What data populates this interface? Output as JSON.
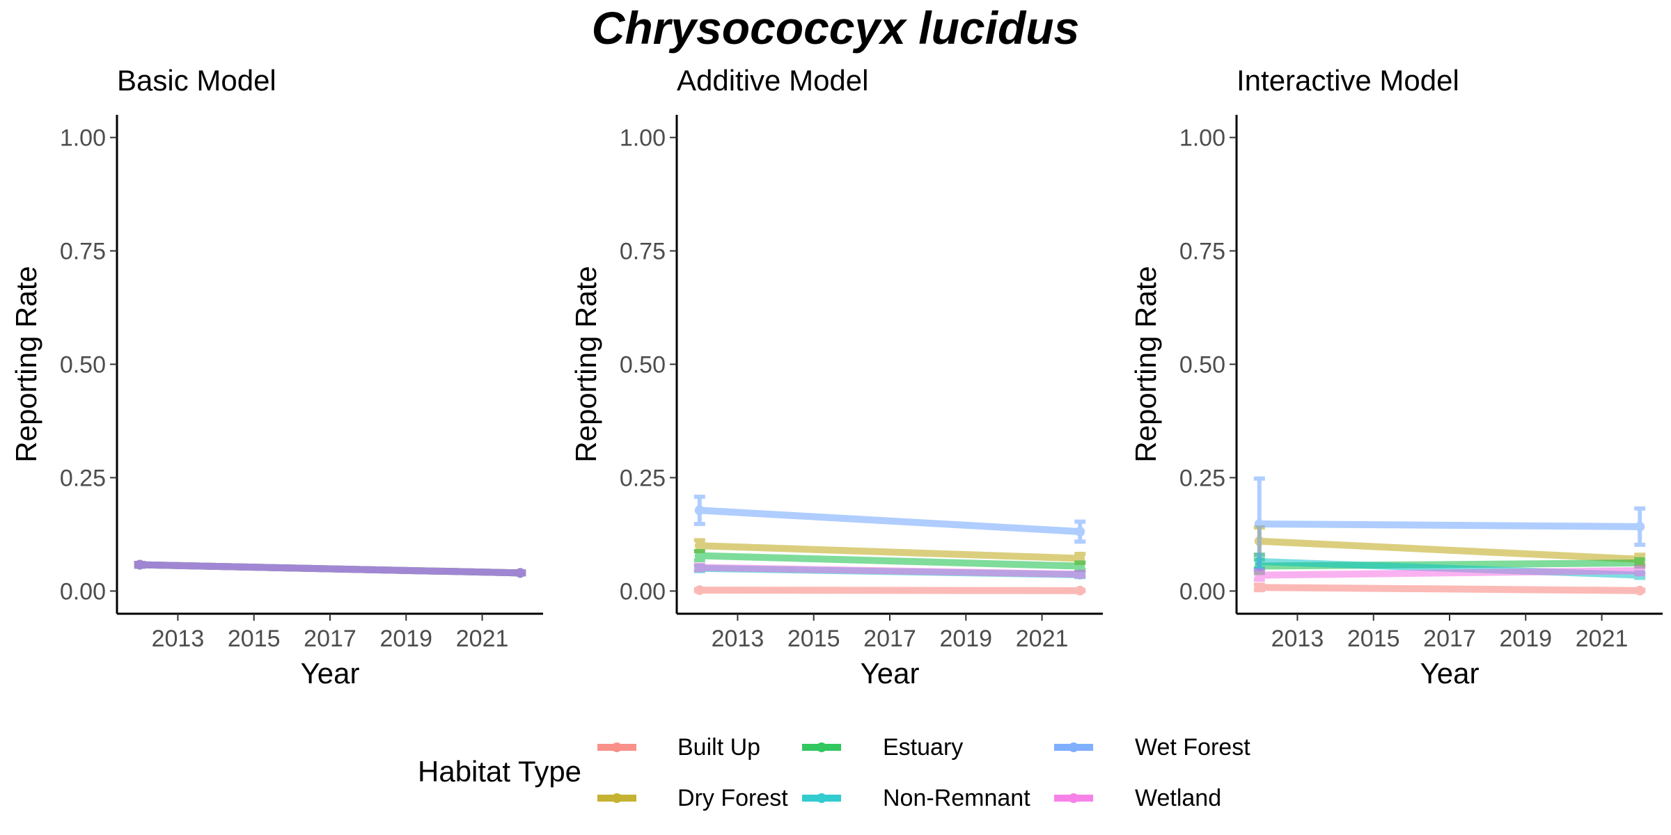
{
  "title": "Chrysococcyx lucidus",
  "legend": {
    "title": "Habitat Type",
    "entries": [
      {
        "label": "Built Up",
        "color": "#F8766D"
      },
      {
        "label": "Dry Forest",
        "color": "#B79F00"
      },
      {
        "label": "Estuary",
        "color": "#00BA38"
      },
      {
        "label": "Non-Remnant",
        "color": "#00BFC4"
      },
      {
        "label": "Wet Forest",
        "color": "#619CFF"
      },
      {
        "label": "Wetland",
        "color": "#F564E3"
      }
    ]
  },
  "chart_data": [
    {
      "type": "line",
      "title": "Basic Model",
      "xlabel": "Year",
      "ylabel": "Reporting Rate",
      "xlim": [
        2011.4,
        2022.6
      ],
      "ylim": [
        -0.05,
        1.05
      ],
      "xticks": [
        2013,
        2015,
        2017,
        2019,
        2021
      ],
      "yticks": [
        0.0,
        0.25,
        0.5,
        0.75,
        1.0
      ],
      "ytick_labels": [
        "0.00",
        "0.25",
        "0.50",
        "0.75",
        "1.00"
      ],
      "series": [
        {
          "habitat": "Built Up",
          "color": "#F8766D",
          "x": [
            2012,
            2022
          ],
          "y": [
            0.058,
            0.04
          ],
          "err": [
            0.004,
            0.003
          ]
        },
        {
          "habitat": "Dry Forest",
          "color": "#B79F00",
          "x": [
            2012,
            2022
          ],
          "y": [
            0.058,
            0.04
          ],
          "err": [
            0.004,
            0.003
          ]
        },
        {
          "habitat": "Estuary",
          "color": "#00BA38",
          "x": [
            2012,
            2022
          ],
          "y": [
            0.058,
            0.04
          ],
          "err": [
            0.004,
            0.003
          ]
        },
        {
          "habitat": "Non-Remnant",
          "color": "#00BFC4",
          "x": [
            2012,
            2022
          ],
          "y": [
            0.058,
            0.04
          ],
          "err": [
            0.004,
            0.003
          ]
        },
        {
          "habitat": "Wet Forest",
          "color": "#619CFF",
          "x": [
            2012,
            2022
          ],
          "y": [
            0.058,
            0.04
          ],
          "err": [
            0.004,
            0.003
          ]
        },
        {
          "habitat": "Wetland",
          "color": "#F564E3",
          "x": [
            2012,
            2022
          ],
          "y": [
            0.058,
            0.04
          ],
          "err": [
            0.004,
            0.003
          ]
        }
      ]
    },
    {
      "type": "line",
      "title": "Additive Model",
      "xlabel": "Year",
      "ylabel": "Reporting Rate",
      "xlim": [
        2011.4,
        2022.6
      ],
      "ylim": [
        -0.05,
        1.05
      ],
      "xticks": [
        2013,
        2015,
        2017,
        2019,
        2021
      ],
      "yticks": [
        0.0,
        0.25,
        0.5,
        0.75,
        1.0
      ],
      "ytick_labels": [
        "0.00",
        "0.25",
        "0.50",
        "0.75",
        "1.00"
      ],
      "series": [
        {
          "habitat": "Built Up",
          "color": "#F8766D",
          "x": [
            2012,
            2022
          ],
          "y": [
            0.002,
            0.001
          ],
          "err": [
            0.002,
            0.001
          ]
        },
        {
          "habitat": "Dry Forest",
          "color": "#B79F00",
          "x": [
            2012,
            2022
          ],
          "y": [
            0.1,
            0.072
          ],
          "err": [
            0.012,
            0.01
          ]
        },
        {
          "habitat": "Estuary",
          "color": "#00BA38",
          "x": [
            2012,
            2022
          ],
          "y": [
            0.078,
            0.055
          ],
          "err": [
            0.01,
            0.008
          ]
        },
        {
          "habitat": "Non-Remnant",
          "color": "#00BFC4",
          "x": [
            2012,
            2022
          ],
          "y": [
            0.05,
            0.036
          ],
          "err": [
            0.006,
            0.005
          ]
        },
        {
          "habitat": "Wet Forest",
          "color": "#619CFF",
          "x": [
            2012,
            2022
          ],
          "y": [
            0.178,
            0.131
          ],
          "err": [
            0.03,
            0.022
          ]
        },
        {
          "habitat": "Wetland",
          "color": "#F564E3",
          "x": [
            2012,
            2022
          ],
          "y": [
            0.052,
            0.037
          ],
          "err": [
            0.006,
            0.005
          ]
        }
      ]
    },
    {
      "type": "line",
      "title": "Interactive Model",
      "xlabel": "Year",
      "ylabel": "Reporting Rate",
      "xlim": [
        2011.4,
        2022.6
      ],
      "ylim": [
        -0.05,
        1.05
      ],
      "xticks": [
        2013,
        2015,
        2017,
        2019,
        2021
      ],
      "yticks": [
        0.0,
        0.25,
        0.5,
        0.75,
        1.0
      ],
      "ytick_labels": [
        "0.00",
        "0.25",
        "0.50",
        "0.75",
        "1.00"
      ],
      "series": [
        {
          "habitat": "Built Up",
          "color": "#F8766D",
          "x": [
            2012,
            2022
          ],
          "y": [
            0.008,
            0.001
          ],
          "err": [
            0.006,
            0.002
          ]
        },
        {
          "habitat": "Dry Forest",
          "color": "#B79F00",
          "x": [
            2012,
            2022
          ],
          "y": [
            0.11,
            0.07
          ],
          "err": [
            0.03,
            0.01
          ]
        },
        {
          "habitat": "Estuary",
          "color": "#00BA38",
          "x": [
            2012,
            2022
          ],
          "y": [
            0.055,
            0.062
          ],
          "err": [
            0.015,
            0.008
          ]
        },
        {
          "habitat": "Non-Remnant",
          "color": "#00BFC4",
          "x": [
            2012,
            2022
          ],
          "y": [
            0.065,
            0.035
          ],
          "err": [
            0.015,
            0.006
          ]
        },
        {
          "habitat": "Wet Forest",
          "color": "#619CFF",
          "x": [
            2012,
            2022
          ],
          "y": [
            0.148,
            0.142
          ],
          "err": [
            0.1,
            0.04
          ]
        },
        {
          "habitat": "Wetland",
          "color": "#F564E3",
          "x": [
            2012,
            2022
          ],
          "y": [
            0.035,
            0.045
          ],
          "err": [
            0.01,
            0.008
          ]
        }
      ]
    }
  ]
}
